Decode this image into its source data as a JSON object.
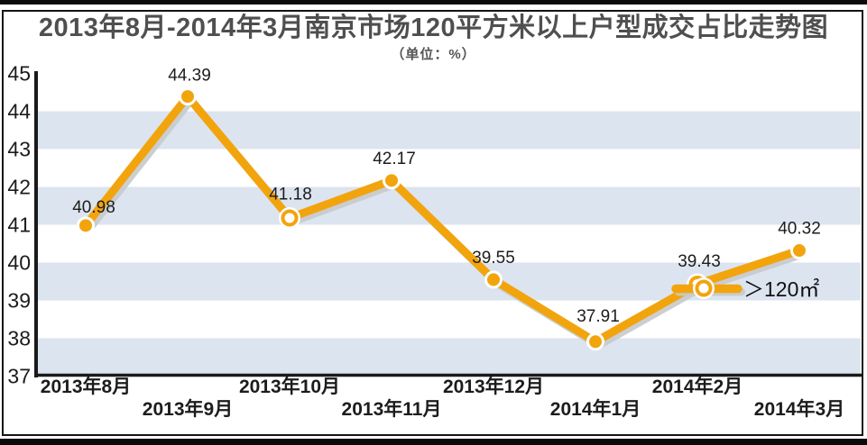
{
  "title": "2013年8月-2014年3月南京市场120平方米以上户型成交占比走势图",
  "subtitle": "（单位：%）",
  "chart_data": {
    "type": "line",
    "title": "2013年8月-2014年3月南京市场120平方米以上户型成交占比走势图",
    "subtitle": "（单位：%）",
    "unit": "%",
    "categories": [
      "2013年8月",
      "2013年9月",
      "2013年10月",
      "2013年11月",
      "2013年12月",
      "2014年1月",
      "2014年2月",
      "2014年3月"
    ],
    "series": [
      {
        "name": "＞120㎡",
        "values": [
          40.98,
          44.39,
          41.18,
          42.17,
          39.55,
          37.91,
          39.43,
          40.32
        ]
      }
    ],
    "data_labels": [
      "40.98",
      "44.39",
      "41.18",
      "42.17",
      "39.55",
      "37.91",
      "39.43",
      "40.32"
    ],
    "ylim": [
      37,
      45
    ],
    "yticks": [
      37,
      38,
      39,
      40,
      41,
      42,
      43,
      44,
      45
    ],
    "grid": "alternating-horizontal-bands",
    "band_value_ranges": [
      [
        37,
        38
      ],
      [
        39,
        40
      ],
      [
        41,
        42
      ],
      [
        43,
        44
      ]
    ],
    "legend": {
      "label": "＞120㎡",
      "position": "inline-near-2014年2月-point"
    },
    "hollow_marker_indices": [
      2,
      6
    ],
    "xlabel_layout": "staggered-two-rows",
    "colors": {
      "line": "#F2A40D",
      "line_shadow": "#C7CACD",
      "band": "#DCE4EF",
      "axis": "#1A1A1A",
      "tick_label": "#1C1C1C",
      "data_label": "#1C1C1C",
      "legend_text": "#111111",
      "title": "#4F4F4F"
    }
  }
}
